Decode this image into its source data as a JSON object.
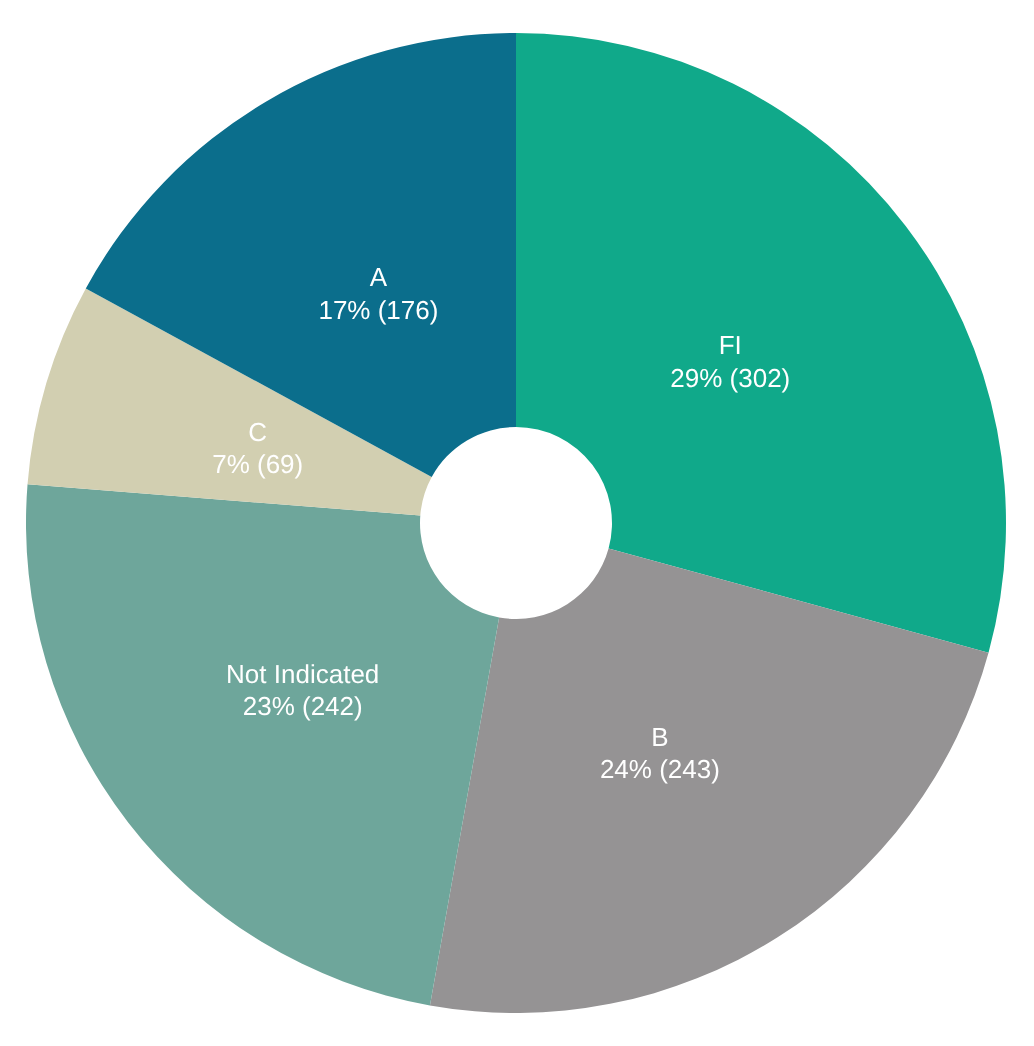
{
  "chart_data": {
    "type": "donut",
    "categories": [
      "FI",
      "B",
      "Not Indicated",
      "C",
      "A"
    ],
    "values": [
      302,
      243,
      242,
      69,
      176
    ],
    "value_labels": [
      "29% (302)",
      "24% (243)",
      "23% (242)",
      "7% (69)",
      "17% (176)"
    ],
    "colors": [
      "#10a98a",
      "#959394",
      "#6ea69b",
      "#d2cfb1",
      "#0b6e8c"
    ]
  }
}
